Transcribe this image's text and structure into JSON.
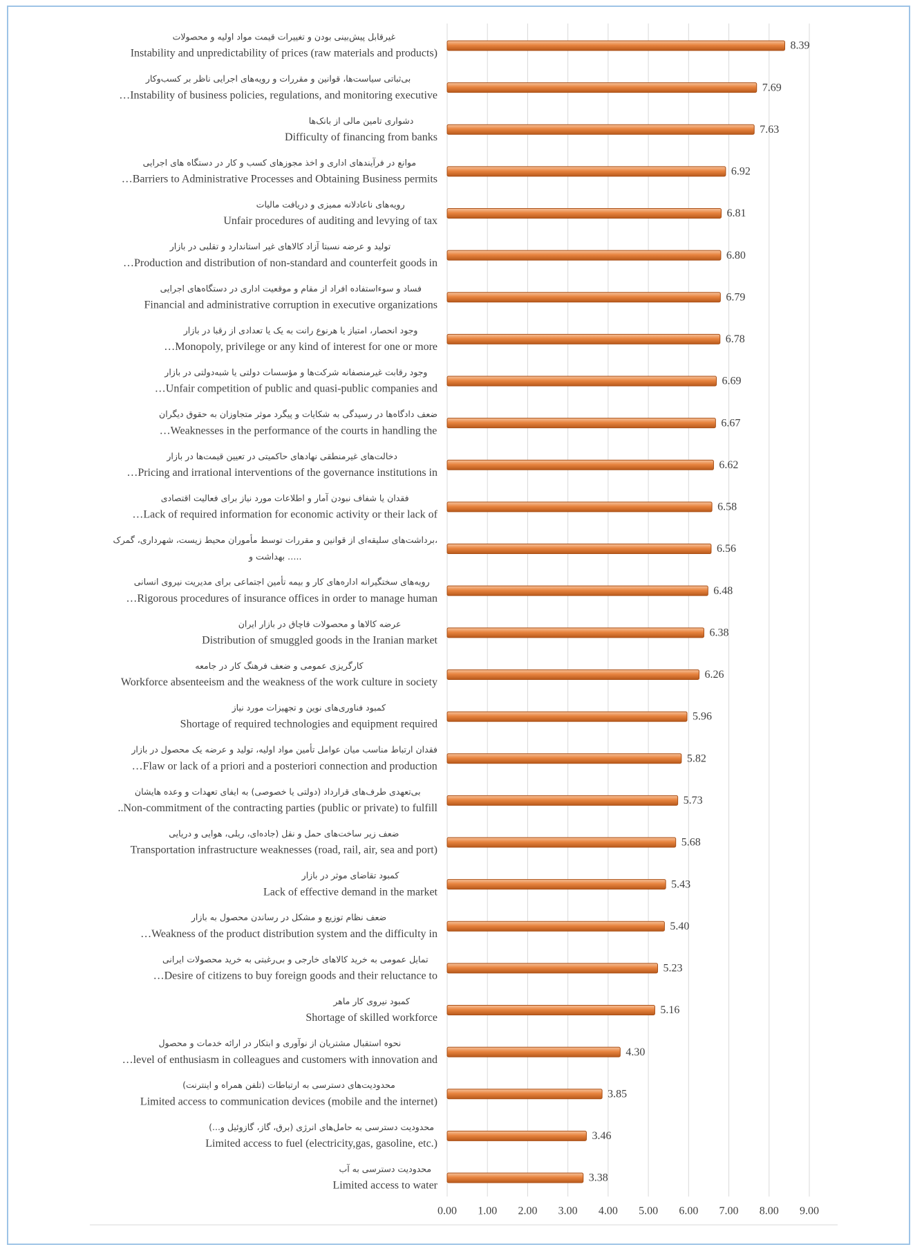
{
  "chart_data": {
    "type": "barh",
    "categories": [
      [
        "غیرقابل پیش‌بینی بودن و تغییرات قیمت مواد اولیه و محصولات",
        "Instability and unpredictability of prices (raw materials and products)"
      ],
      [
        "بی‌ثباتی سیاست‌ها، قوانین و مقررات و رویه‌های اجرایی ناظر بر کسب‌وکار",
        "…Instability of business policies, regulations, and monitoring executive"
      ],
      [
        "دشواری تامین مالی از بانک‌ها",
        "Difficulty of financing from banks"
      ],
      [
        "موانع در فرآیندهای اداری و اخذ مجوزهای کسب و کار در دستگاه های اجرایی",
        "…Barriers to Administrative Processes and Obtaining Business permits"
      ],
      [
        "رویه‌های ناعادلانه ممیزی و دریافت مالیات",
        "Unfair procedures of auditing and levying of tax"
      ],
      [
        "تولید و عرضه نسبتا آزاد کالاهای غیر استاندارد و تقلبی در بازار",
        "…Production and distribution of non-standard and counterfeit goods in"
      ],
      [
        "فساد و سوءاستفاده افراد از مقام و موقعیت اداری در دستگاه‌های اجرایی",
        "Financial and administrative corruption in executive organizations"
      ],
      [
        "وجود انحصار، امتیاز یا هرنوع رانت به یک یا تعدادی از رقبا در بازار",
        "…Monopoly, privilege or any kind of interest for one or more"
      ],
      [
        "وجود رقابت غیرمنصفانه شرکت‌ها و مؤسسات دولتی یا شبه‌دولتی در بازار",
        "…Unfair competition of public and quasi-public companies and"
      ],
      [
        "ضعف  دادگاه‌ها در رسیدگی به شکایات و پیگرد موثر متجاوزان به حقوق دیگران",
        "…Weaknesses in the performance of the courts in handling the"
      ],
      [
        "دخالت‌های غیرمنطقی نهادهای حاکمیتی در تعیین قیمت‌ها در بازار",
        "…Pricing and irrational interventions of the governance institutions in"
      ],
      [
        "فقدان یا شفاف نبودن آمار و اطلاعات مورد نیاز برای فعالیت اقتصادی",
        "…Lack of required information for economic activity or their lack of"
      ],
      [
        "برداشت‌های سلیقه‌ای از قوانین و مقررات توسط مأموران محیط زیست، شهرداری، گمرک،",
        "بهداشت و ….."
      ],
      [
        "رویه‌های سختگیرانه اداره‌های کار و بیمه تأمین اجتماعی برای مدیریت نیروی انسانی",
        "…Rigorous procedures of  insurance offices in order to manage human"
      ],
      [
        "عرضه کالاها و محصولات قاچاق در بازار ایران",
        "Distribution of smuggled goods in the Iranian market"
      ],
      [
        "کارگریزی عمومی و ضعف فرهنگ کار در جامعه",
        "Workforce absenteeism and the weakness of the work culture in society"
      ],
      [
        "کمبود فناوری‌های نوین و تجهیزات مورد نیاز",
        "Shortage of required technologies and equipment required"
      ],
      [
        "فقدان ارتباط مناسب میان عوامل تأمین مواد اولیه، تولید و عرضه یک محصول در بازار",
        "…Flaw or lack of a priori and a posteriori connection and production"
      ],
      [
        "بی‌تعهدی طرف‌های قرارداد (دولتی یا خصوصی) به ایفای تعهدات و وعده هایشان",
        "..Non-commitment of the contracting parties (public or private) to fulfill"
      ],
      [
        "ضعف زیر ساخت‌های حمل و نقل (جاده‌ای، ریلی، هوایی و دریایی",
        "Transportation infrastructure weaknesses (road, rail, air, sea and port)"
      ],
      [
        "کمبود تقاضای موثر در بازار",
        "Lack of effective demand in the market"
      ],
      [
        "ضعف نظام توزیع و مشکل در رساندن محصول به بازار",
        "…Weakness of the product distribution system and the difficulty in"
      ],
      [
        "تمایل عمومی به خرید کالاهای خارجی و بی‌رغبتی به خرید محصولات ایرانی",
        "…Desire of citizens to buy foreign goods and their reluctance to"
      ],
      [
        "کمبود نیروی کار ماهر",
        "Shortage of skilled workforce"
      ],
      [
        "نحوه استقبال مشتریان از نوآوری و ابتکار در ارائه خدمات و محصول",
        "…level of enthusiasm in colleagues and customers with innovation and"
      ],
      [
        "محدودیت‌های دسترسی به ارتباطات (تلفن همراه و اینترنت)",
        "Limited access to communication devices (mobile and the internet)"
      ],
      [
        "محدودیت دسترسی به حامل‌های انرژی (برق، گاز، گازوئیل و...)",
        "Limited access to fuel (electricity,gas, gasoline, etc.)"
      ],
      [
        "محدودیت دسترسی به آب",
        "Limited access to water"
      ]
    ],
    "values": [
      8.39,
      7.69,
      7.63,
      6.92,
      6.81,
      6.8,
      6.79,
      6.78,
      6.69,
      6.67,
      6.62,
      6.58,
      6.56,
      6.48,
      6.38,
      6.26,
      5.96,
      5.82,
      5.73,
      5.68,
      5.43,
      5.4,
      5.23,
      5.16,
      4.3,
      3.85,
      3.46,
      3.38
    ],
    "value_labels": [
      "8.39",
      "7.69",
      "7.63",
      "6.92",
      "6.81",
      "6.80",
      "6.79",
      "6.78",
      "6.69",
      "6.67",
      "6.62",
      "6.58",
      "6.56",
      "6.48",
      "6.38",
      "6.26",
      "5.96",
      "5.82",
      "5.73",
      "5.68",
      "5.43",
      "5.40",
      "5.23",
      "5.16",
      "4.30",
      "3.85",
      "3.46",
      "3.38"
    ],
    "color": "#e2803f",
    "xlim": [
      0,
      9
    ],
    "xticks": [
      {
        "value": 0,
        "label": "0.00"
      },
      {
        "value": 1,
        "label": "1.00"
      },
      {
        "value": 2,
        "label": "2.00"
      },
      {
        "value": 3,
        "label": "3.00"
      },
      {
        "value": 4,
        "label": "4.00"
      },
      {
        "value": 5,
        "label": "5.00"
      },
      {
        "value": 6,
        "label": "6.00"
      },
      {
        "value": 7,
        "label": "7.00"
      },
      {
        "value": 8,
        "label": "8.00"
      },
      {
        "value": 9,
        "label": "9.00"
      }
    ],
    "grid": true
  }
}
